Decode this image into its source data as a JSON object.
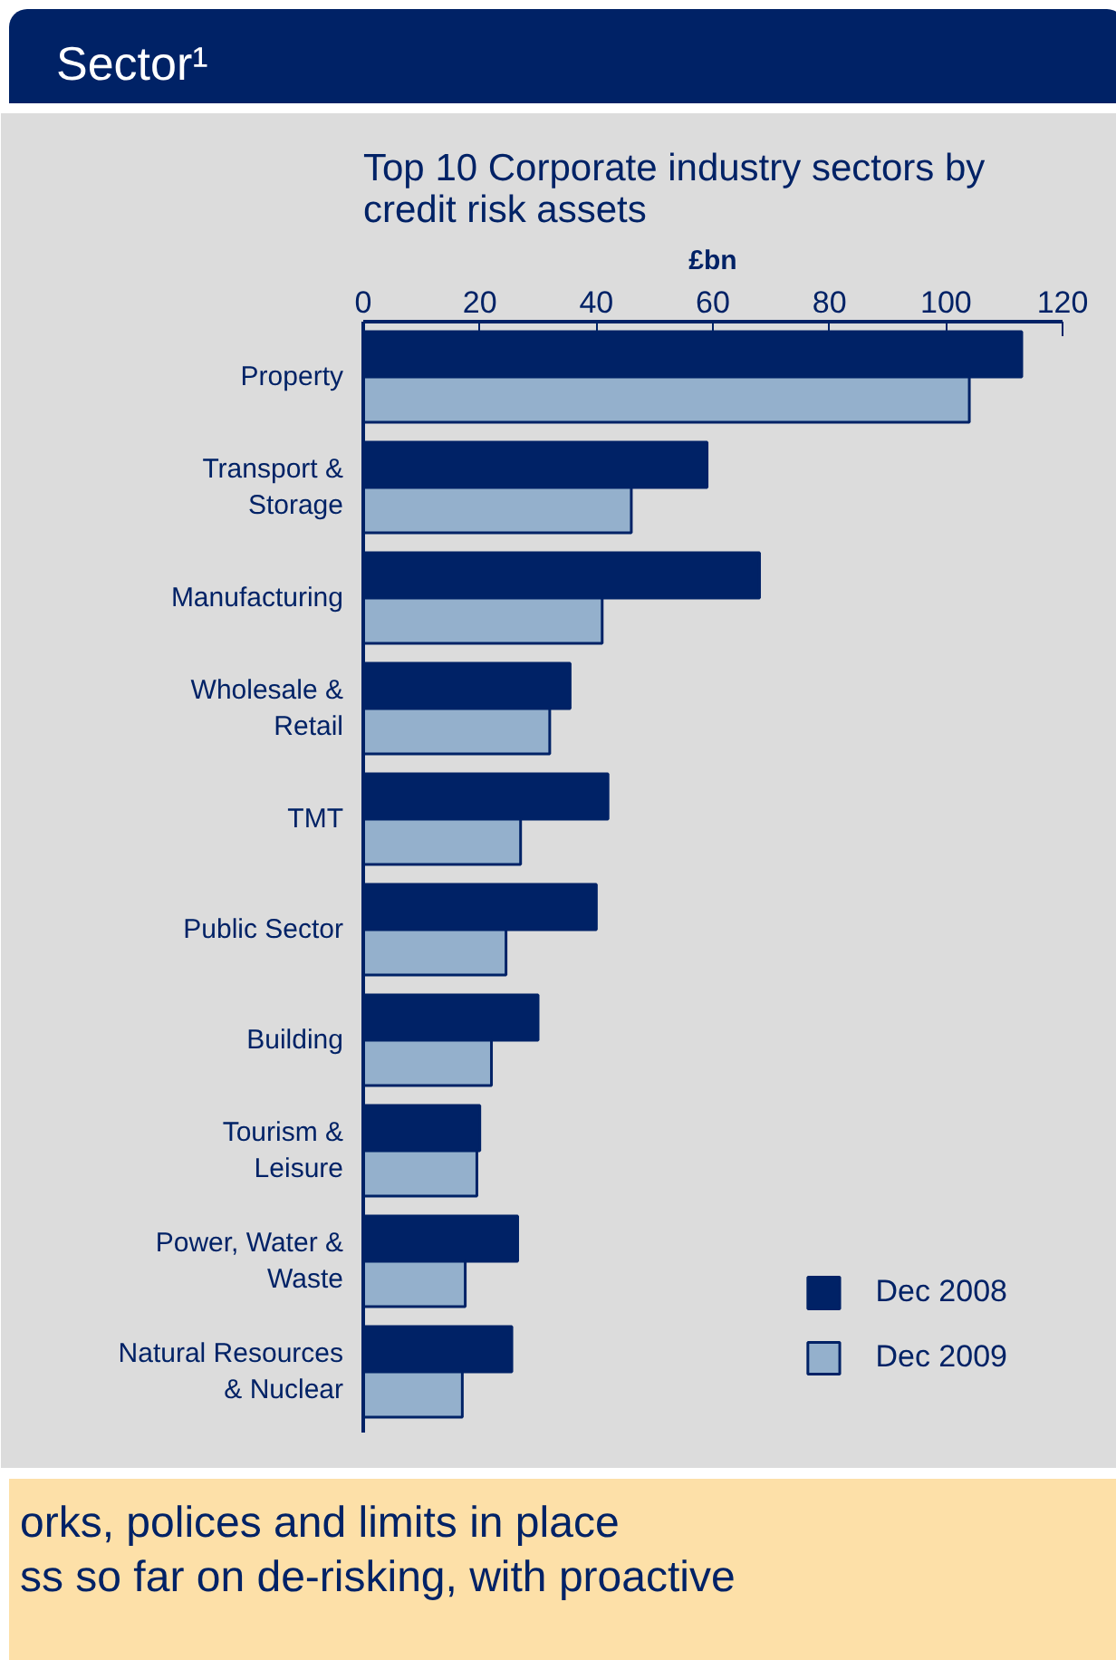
{
  "chart_data": {
    "type": "bar",
    "orientation": "horizontal",
    "title": "Sector¹",
    "subtitle": "Top 10 Corporate industry sectors by\ncredit risk assets",
    "xlabel": "£bn",
    "categories": [
      "Property",
      "Transport &\nStorage",
      "Manufacturing",
      "Wholesale &\nRetail",
      "TMT",
      "Public Sector",
      "Building",
      "Tourism &\nLeisure",
      "Power, Water &\nWaste",
      "Natural Resources\n& Nuclear"
    ],
    "series": [
      {
        "name": "Dec 2008",
        "color": "#002266",
        "values": [
          113,
          59,
          68,
          35.5,
          42,
          40,
          30,
          20,
          26.5,
          25.5
        ]
      },
      {
        "name": "Dec 2009",
        "color": "#94b0cc",
        "values": [
          104,
          46,
          41,
          32,
          27,
          24.5,
          22,
          19.5,
          17.5,
          17
        ]
      }
    ],
    "xlim": [
      0,
      120
    ],
    "xticks": [
      0,
      20,
      40,
      60,
      80,
      100,
      120
    ],
    "grid": false,
    "legend": "bottom right",
    "annotations": [
      "orks, polices and limits in place",
      "ss so far on de-risking, with proactive"
    ]
  }
}
